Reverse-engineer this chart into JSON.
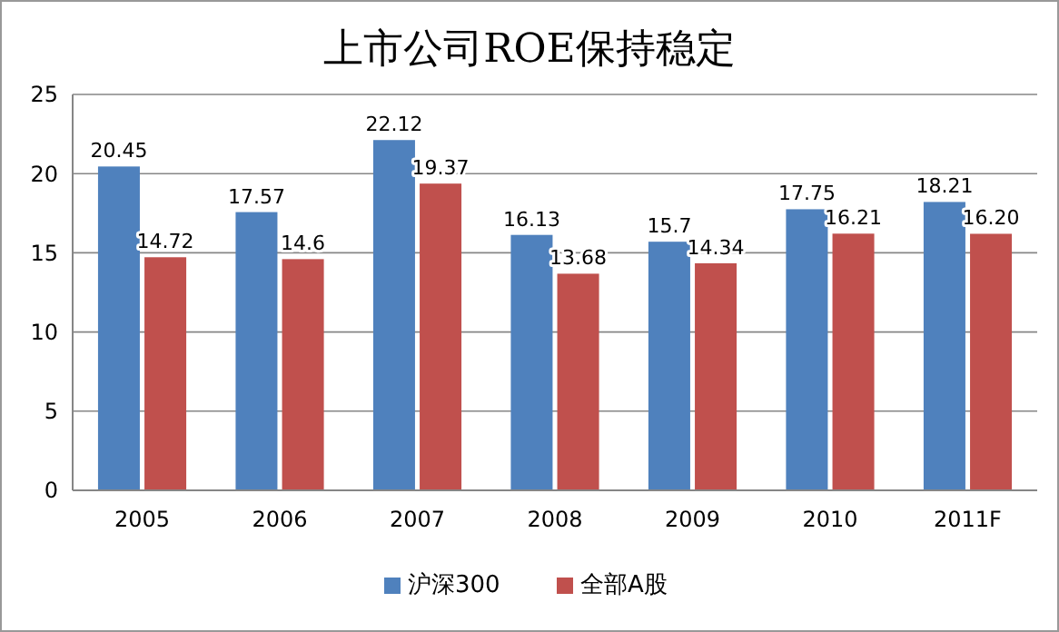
{
  "chart_data": {
    "type": "bar",
    "title": "上市公司ROE保持稳定",
    "categories": [
      "2005",
      "2006",
      "2007",
      "2008",
      "2009",
      "2010",
      "2011F"
    ],
    "series": [
      {
        "name": "沪深300",
        "color": "#4f81bd",
        "values": [
          20.45,
          17.57,
          22.12,
          16.13,
          15.7,
          17.75,
          18.21
        ],
        "value_labels": [
          "20.45",
          "17.57",
          "22.12",
          "16.13",
          "15.7",
          "17.75",
          "18.21"
        ]
      },
      {
        "name": "全部A股",
        "color": "#c0504d",
        "values": [
          14.72,
          14.6,
          19.37,
          13.68,
          14.34,
          16.21,
          16.2
        ],
        "value_labels": [
          "14.72",
          "14.6",
          "19.37",
          "13.68",
          "14.34",
          "16.21",
          "16.20"
        ]
      }
    ],
    "ylim": [
      0,
      25
    ],
    "yticks": [
      0,
      5,
      10,
      15,
      20,
      25
    ],
    "grid": "y",
    "legend": "bottom"
  }
}
